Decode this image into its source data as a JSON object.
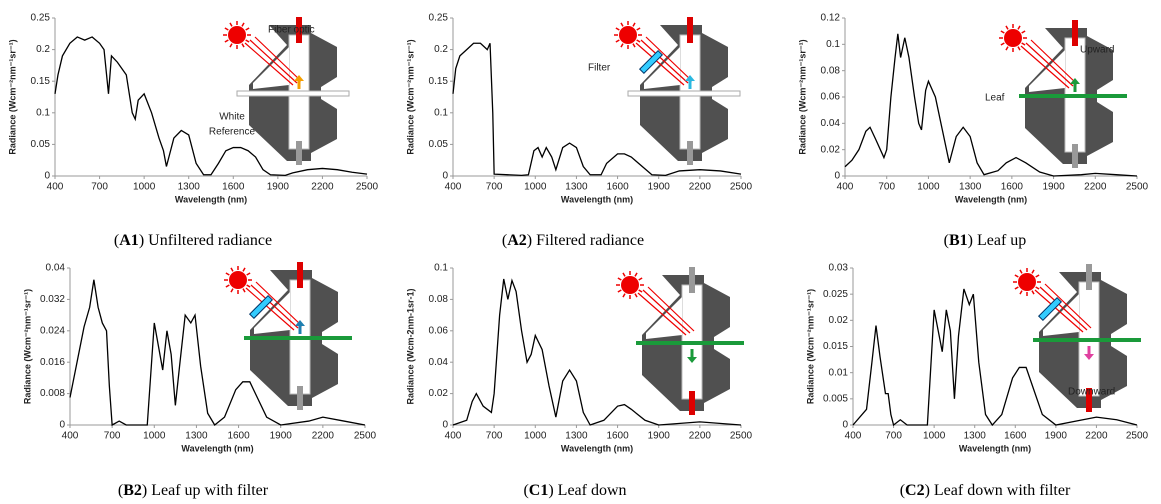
{
  "chart_data": [
    {
      "type": "line",
      "caption": [
        "(",
        "A1",
        ") Unfiltered radiance"
      ],
      "xlabel": "Wavelength (nm)",
      "ylabel": "Radiance (Wcm⁻²nm⁻¹sr⁻¹)",
      "color": "#000000",
      "xlim": [
        400,
        2500
      ],
      "xticks": [
        400,
        700,
        1000,
        1300,
        1600,
        1900,
        2200,
        2500
      ],
      "ylim": [
        0,
        0.25
      ],
      "yticks": [
        0,
        0.05,
        0.1,
        0.15,
        0.2,
        0.25
      ],
      "annotations": [
        "Fiber optic",
        "White",
        "Reference"
      ],
      "x": [
        400,
        420,
        450,
        500,
        550,
        600,
        650,
        700,
        730,
        760,
        780,
        820,
        880,
        920,
        940,
        960,
        1000,
        1050,
        1100,
        1130,
        1150,
        1200,
        1250,
        1300,
        1350,
        1400,
        1450,
        1500,
        1550,
        1600,
        1650,
        1700,
        1750,
        1800,
        1850,
        1950,
        2000,
        2100,
        2200,
        2300,
        2400,
        2500
      ],
      "values": [
        0.13,
        0.16,
        0.19,
        0.21,
        0.22,
        0.215,
        0.22,
        0.21,
        0.2,
        0.13,
        0.19,
        0.18,
        0.16,
        0.1,
        0.09,
        0.12,
        0.13,
        0.1,
        0.06,
        0.04,
        0.015,
        0.06,
        0.072,
        0.065,
        0.02,
        0.002,
        0.002,
        0.02,
        0.04,
        0.045,
        0.045,
        0.04,
        0.03,
        0.01,
        0.002,
        0.001,
        0.005,
        0.01,
        0.012,
        0.01,
        0.006,
        0.003
      ]
    },
    {
      "type": "line",
      "caption": [
        "(",
        "A2",
        ") Filtered radiance"
      ],
      "xlabel": "Wavelength (nm)",
      "ylabel": "Radiance (Wcm⁻²nm⁻¹sr⁻¹)",
      "color": "#000000",
      "xlim": [
        400,
        2500
      ],
      "xticks": [
        400,
        700,
        1000,
        1300,
        1600,
        1900,
        2200,
        2500
      ],
      "ylim": [
        0,
        0.25
      ],
      "yticks": [
        0,
        0.05,
        0.1,
        0.15,
        0.2,
        0.25
      ],
      "annotations": [
        "Filter"
      ],
      "x": [
        400,
        420,
        450,
        500,
        550,
        600,
        650,
        670,
        690,
        700,
        900,
        950,
        990,
        1020,
        1050,
        1080,
        1120,
        1150,
        1200,
        1250,
        1300,
        1350,
        1400,
        1480,
        1520,
        1600,
        1650,
        1700,
        1780,
        1850,
        1950,
        2050,
        2200,
        2350,
        2500
      ],
      "values": [
        0.13,
        0.17,
        0.19,
        0.2,
        0.21,
        0.21,
        0.2,
        0.21,
        0.1,
        0.003,
        0.001,
        0.002,
        0.04,
        0.045,
        0.03,
        0.045,
        0.03,
        0.01,
        0.045,
        0.052,
        0.045,
        0.015,
        0.002,
        0.002,
        0.02,
        0.035,
        0.035,
        0.03,
        0.015,
        0.002,
        0.001,
        0.008,
        0.01,
        0.008,
        0.003
      ]
    },
    {
      "type": "line",
      "caption": [
        "(",
        "B1",
        ") Leaf up"
      ],
      "xlabel": "Wavelength (nm)",
      "ylabel": "Radiance (Wcm⁻²nm⁻¹sr⁻¹)",
      "color": "#000000",
      "xlim": [
        400,
        2500
      ],
      "xticks": [
        400,
        700,
        1000,
        1300,
        1600,
        1900,
        2200,
        2500
      ],
      "ylim": [
        0,
        0.12
      ],
      "yticks": [
        0,
        0.02,
        0.04,
        0.06,
        0.08,
        0.1,
        0.12
      ],
      "annotations": [
        "Upward",
        "Leaf"
      ],
      "x": [
        400,
        450,
        500,
        550,
        580,
        620,
        680,
        700,
        730,
        760,
        780,
        800,
        830,
        860,
        900,
        930,
        950,
        980,
        1000,
        1050,
        1100,
        1150,
        1200,
        1250,
        1300,
        1350,
        1400,
        1500,
        1560,
        1630,
        1700,
        1800,
        1900,
        2100,
        2200,
        2350,
        2500
      ],
      "values": [
        0.007,
        0.012,
        0.02,
        0.034,
        0.037,
        0.028,
        0.014,
        0.02,
        0.06,
        0.09,
        0.108,
        0.09,
        0.105,
        0.09,
        0.06,
        0.04,
        0.035,
        0.065,
        0.072,
        0.06,
        0.035,
        0.01,
        0.03,
        0.037,
        0.03,
        0.01,
        0.001,
        0.004,
        0.01,
        0.014,
        0.01,
        0.003,
        0,
        0.001,
        0.002,
        0.001,
        0
      ]
    },
    {
      "type": "line",
      "caption": [
        "(",
        "B2",
        ") Leaf up with filter"
      ],
      "xlabel": "Wavelength (nm)",
      "ylabel": "Radiance (Wcm⁻²nm⁻¹sr⁻¹)",
      "color": "#000000",
      "xlim": [
        400,
        2500
      ],
      "xticks": [
        400,
        700,
        1000,
        1300,
        1600,
        1900,
        2200,
        2500
      ],
      "ylim": [
        0,
        0.04
      ],
      "yticks": [
        0,
        0.008,
        0.016,
        0.024,
        0.032,
        0.04
      ],
      "annotations": [],
      "x": [
        400,
        450,
        500,
        540,
        570,
        600,
        630,
        660,
        680,
        700,
        750,
        800,
        950,
        1000,
        1030,
        1060,
        1090,
        1120,
        1150,
        1180,
        1220,
        1260,
        1290,
        1330,
        1380,
        1430,
        1500,
        1580,
        1630,
        1680,
        1720,
        1800,
        1900,
        2100,
        2200,
        2350,
        2500
      ],
      "values": [
        0.007,
        0.016,
        0.025,
        0.03,
        0.037,
        0.03,
        0.026,
        0.024,
        0.01,
        0,
        0.001,
        0,
        0,
        0.026,
        0.02,
        0.014,
        0.024,
        0.018,
        0.005,
        0.015,
        0.028,
        0.026,
        0.028,
        0.015,
        0.003,
        0,
        0.002,
        0.009,
        0.011,
        0.011,
        0.008,
        0.002,
        0,
        0.001,
        0.002,
        0.001,
        0
      ]
    },
    {
      "type": "line",
      "caption": [
        "(",
        "C1",
        ") Leaf down"
      ],
      "xlabel": "Wavelength (nm)",
      "ylabel": "Radiance (Wcm-2nm-1sr-1)",
      "color": "#000000",
      "xlim": [
        400,
        2500
      ],
      "xticks": [
        400,
        700,
        1000,
        1300,
        1600,
        1900,
        2200,
        2500
      ],
      "ylim": [
        0,
        0.1
      ],
      "yticks": [
        0,
        0.02,
        0.04,
        0.06,
        0.08,
        0.1
      ],
      "annotations": [],
      "x": [
        400,
        500,
        540,
        570,
        620,
        680,
        700,
        740,
        770,
        800,
        830,
        860,
        900,
        940,
        970,
        1000,
        1050,
        1100,
        1150,
        1200,
        1250,
        1300,
        1350,
        1400,
        1500,
        1600,
        1650,
        1700,
        1800,
        1900,
        2200,
        2500
      ],
      "values": [
        0,
        0.003,
        0.015,
        0.02,
        0.012,
        0.008,
        0.02,
        0.07,
        0.093,
        0.08,
        0.092,
        0.085,
        0.06,
        0.04,
        0.045,
        0.057,
        0.048,
        0.025,
        0.005,
        0.028,
        0.035,
        0.028,
        0.008,
        0,
        0.003,
        0.012,
        0.013,
        0.01,
        0.003,
        0,
        0.002,
        0
      ]
    },
    {
      "type": "line",
      "caption": [
        "(",
        "C2",
        ") Leaf down with filter"
      ],
      "xlabel": "Wavelength (nm)",
      "ylabel": "Radiance (Wcm⁻²nm⁻¹sr⁻¹)",
      "color": "#000000",
      "xlim": [
        400,
        2500
      ],
      "xticks": [
        400,
        700,
        1000,
        1300,
        1600,
        1900,
        2200,
        2500
      ],
      "ylim": [
        0,
        0.03
      ],
      "yticks": [
        0,
        0.005,
        0.01,
        0.015,
        0.02,
        0.025,
        0.03
      ],
      "annotations": [
        "Downward"
      ],
      "x": [
        400,
        500,
        540,
        570,
        600,
        640,
        660,
        680,
        700,
        750,
        800,
        950,
        1000,
        1030,
        1060,
        1090,
        1120,
        1150,
        1180,
        1220,
        1260,
        1290,
        1330,
        1380,
        1430,
        1500,
        1580,
        1630,
        1680,
        1720,
        1800,
        1900,
        2100,
        2200,
        2350,
        2500
      ],
      "values": [
        0,
        0.003,
        0.012,
        0.019,
        0.013,
        0.006,
        0.006,
        0.002,
        0,
        0.001,
        0,
        0,
        0.022,
        0.018,
        0.014,
        0.022,
        0.018,
        0.005,
        0.017,
        0.026,
        0.023,
        0.025,
        0.012,
        0.002,
        0,
        0.002,
        0.009,
        0.011,
        0.011,
        0.008,
        0.002,
        0,
        0.001,
        0.0015,
        0.001,
        0
      ]
    }
  ]
}
